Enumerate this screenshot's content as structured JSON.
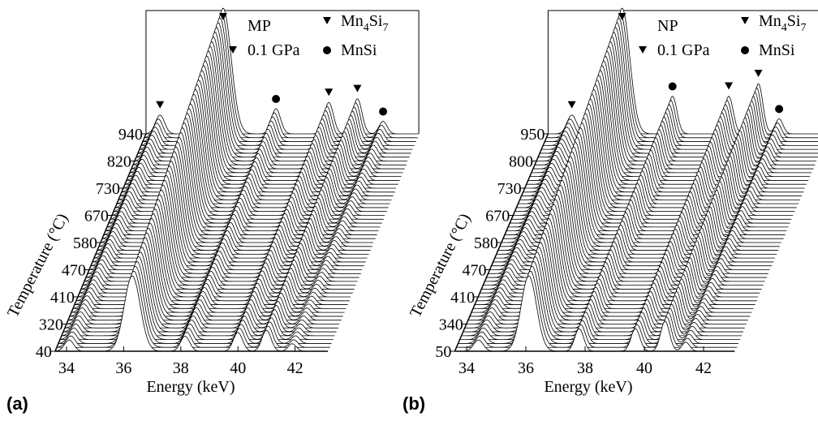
{
  "chart_data": [
    {
      "type": "waterfall",
      "panel_label": "(a)",
      "sample": "MP",
      "pressure": "0.1 GPa",
      "x_label": "Energy (keV)",
      "y_label": "Temperature (°C)",
      "xlim": [
        33.6,
        43.15
      ],
      "xticks": [
        34,
        36,
        38,
        40,
        42
      ],
      "temperature_ticks": [
        40,
        320,
        410,
        470,
        580,
        670,
        730,
        820,
        940
      ],
      "phases": [
        {
          "symbol": "triangle",
          "name": [
            "Mn",
            "4",
            "Si",
            "7"
          ]
        },
        {
          "symbol": "circle",
          "name": [
            "MnSi"
          ]
        }
      ],
      "peaks": [
        {
          "energy": 34.09,
          "height": 15,
          "width": 0.16,
          "phase": 0
        },
        {
          "energy": 36.3,
          "height": 100,
          "width": 0.28,
          "phase": 0
        },
        {
          "energy": 38.15,
          "height": 20,
          "width": 0.16,
          "phase": 1
        },
        {
          "energy": 40.0,
          "height": 25,
          "width": 0.16,
          "phase": 0
        },
        {
          "energy": 41.0,
          "height": 28,
          "width": 0.16,
          "phase": 0
        },
        {
          "energy": 41.9,
          "height": 10,
          "width": 0.14,
          "phase": 1
        }
      ]
    },
    {
      "type": "waterfall",
      "panel_label": "(b)",
      "sample": "NP",
      "pressure": "0.1 GPa",
      "x_label": "Energy (keV)",
      "y_label": "Temperature (°C)",
      "xlim": [
        33.6,
        43.05
      ],
      "xticks": [
        34,
        36,
        38,
        40,
        42
      ],
      "temperature_ticks": [
        50,
        340,
        410,
        470,
        580,
        670,
        730,
        800,
        950
      ],
      "phases": [
        {
          "symbol": "triangle",
          "name": [
            "Mn",
            "4",
            "Si",
            "7"
          ]
        },
        {
          "symbol": "circle",
          "name": [
            "MnSi"
          ]
        }
      ],
      "peaks": [
        {
          "energy": 34.4,
          "height": 15,
          "width": 0.16,
          "phase": 0
        },
        {
          "energy": 36.1,
          "height": 100,
          "width": 0.26,
          "phase": 0
        },
        {
          "energy": 37.8,
          "height": 30,
          "width": 0.15,
          "phase": 1
        },
        {
          "energy": 39.7,
          "height": 30,
          "width": 0.15,
          "phase": 0
        },
        {
          "energy": 40.7,
          "height": 40,
          "width": 0.15,
          "phase": 0
        },
        {
          "energy": 41.4,
          "height": 12,
          "width": 0.13,
          "phase": 1
        }
      ]
    }
  ]
}
